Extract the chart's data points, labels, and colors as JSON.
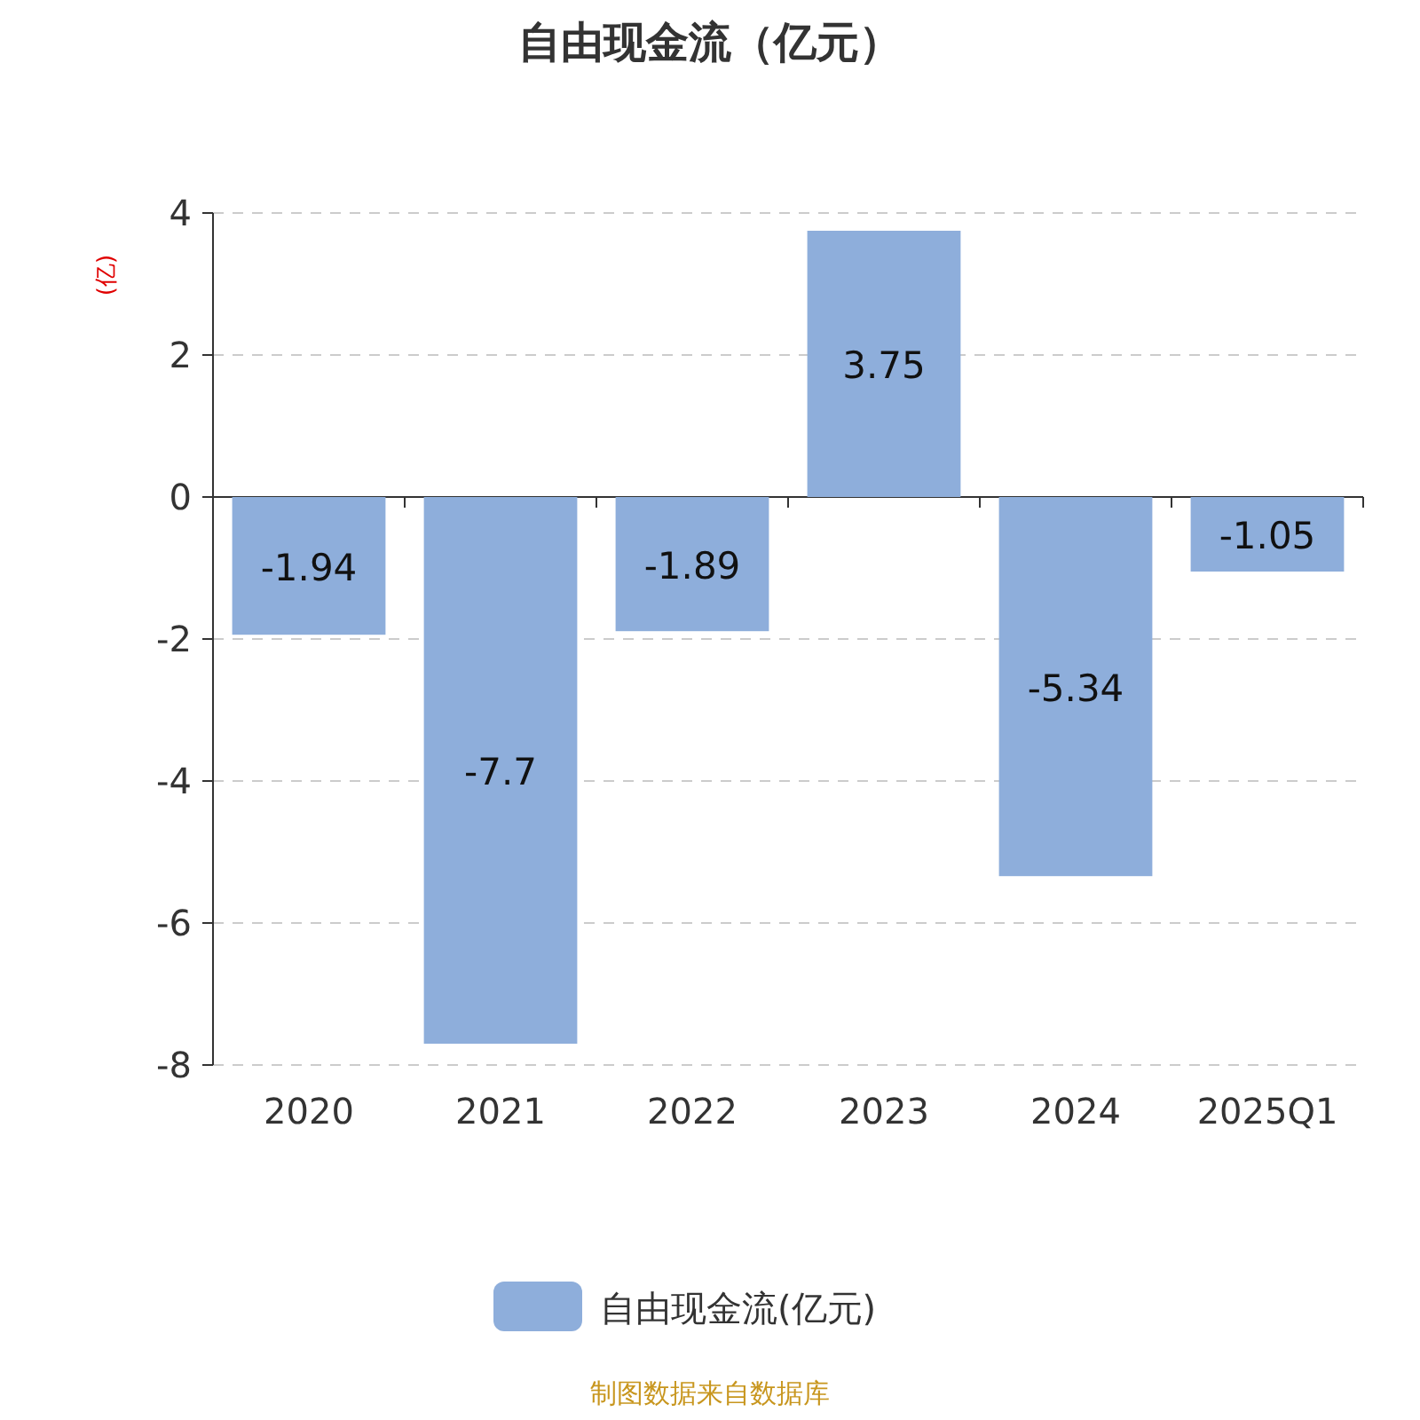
{
  "chart_data": {
    "type": "bar",
    "title": "自由现金流（亿元）",
    "ylabel": "(亿)",
    "categories": [
      "2020",
      "2021",
      "2022",
      "2023",
      "2024",
      "2025Q1"
    ],
    "series": [
      {
        "name": "自由现金流(亿元)",
        "color": "#8eaedb",
        "values": [
          -1.94,
          -7.7,
          -1.89,
          3.75,
          -5.34,
          -1.05
        ]
      }
    ],
    "ylim": [
      -8,
      4
    ],
    "yticks": [
      -8,
      -6,
      -4,
      -2,
      0,
      2,
      4
    ],
    "grid": "y",
    "data_labels": true,
    "legend": "bottom",
    "annotations": [
      "制图数据来自数据库"
    ]
  }
}
